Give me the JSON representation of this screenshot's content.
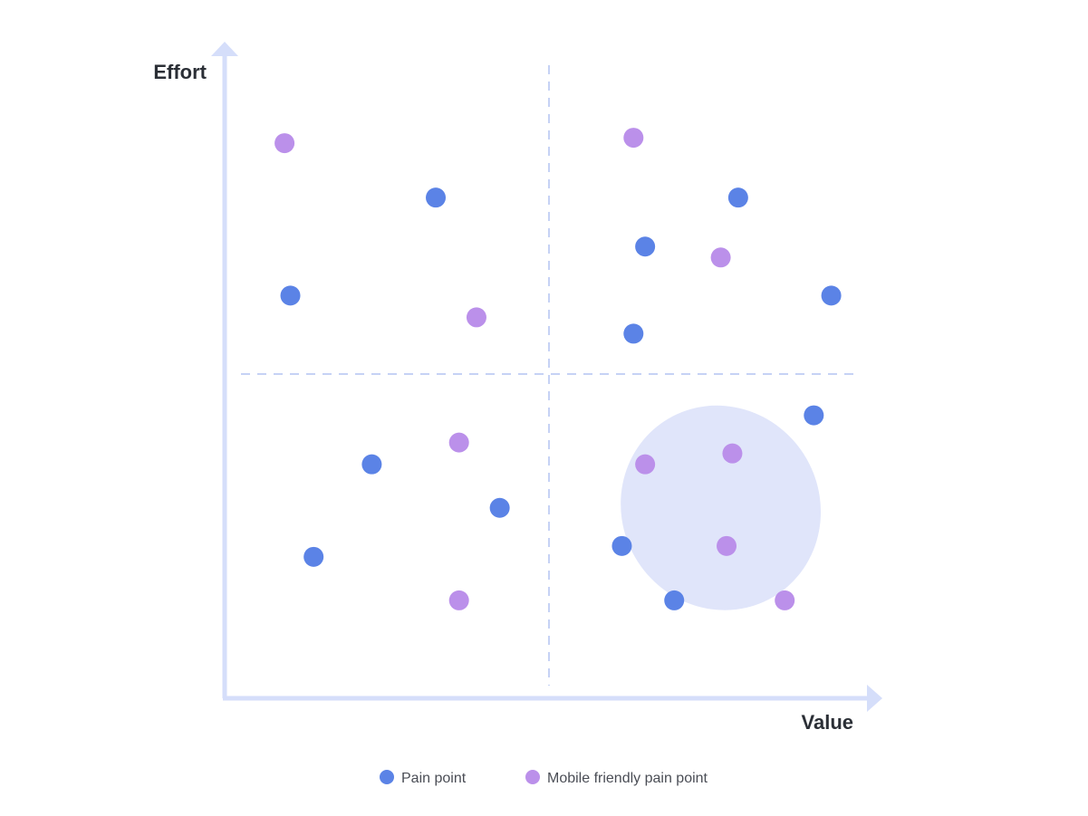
{
  "chart_data": {
    "type": "scatter",
    "xlabel": "Value",
    "ylabel": "Effort",
    "xlim": [
      0,
      100
    ],
    "ylim": [
      0,
      100
    ],
    "quadrant_divider": {
      "x": 50,
      "y": 50
    },
    "highlight_region": {
      "shape": "ellipse",
      "cx": 80,
      "cy": 25,
      "rx": 17,
      "ry": 19,
      "rotation_deg": -30
    },
    "legend": {
      "position": "bottom-center"
    },
    "series": [
      {
        "name": "Pain point",
        "color": "#5b83e6",
        "points": [
          {
            "x": 31,
            "y": 82
          },
          {
            "x": 6,
            "y": 64
          },
          {
            "x": 20,
            "y": 33
          },
          {
            "x": 42,
            "y": 25
          },
          {
            "x": 10,
            "y": 16
          },
          {
            "x": 67,
            "y": 73
          },
          {
            "x": 83,
            "y": 82
          },
          {
            "x": 99,
            "y": 64
          },
          {
            "x": 65,
            "y": 57
          },
          {
            "x": 96,
            "y": 42
          },
          {
            "x": 63,
            "y": 18
          },
          {
            "x": 72,
            "y": 8
          }
        ]
      },
      {
        "name": "Mobile friendly pain point",
        "color": "#bb90ea",
        "points": [
          {
            "x": 5,
            "y": 92
          },
          {
            "x": 38,
            "y": 60
          },
          {
            "x": 35,
            "y": 37
          },
          {
            "x": 35,
            "y": 8
          },
          {
            "x": 65,
            "y": 93
          },
          {
            "x": 80,
            "y": 71
          },
          {
            "x": 67,
            "y": 33
          },
          {
            "x": 82,
            "y": 35
          },
          {
            "x": 81,
            "y": 18
          },
          {
            "x": 91,
            "y": 8
          }
        ]
      }
    ]
  },
  "colors": {
    "axis": "#d5defa",
    "divider": "#c6d2f5",
    "highlight": "#e0e5fa"
  }
}
